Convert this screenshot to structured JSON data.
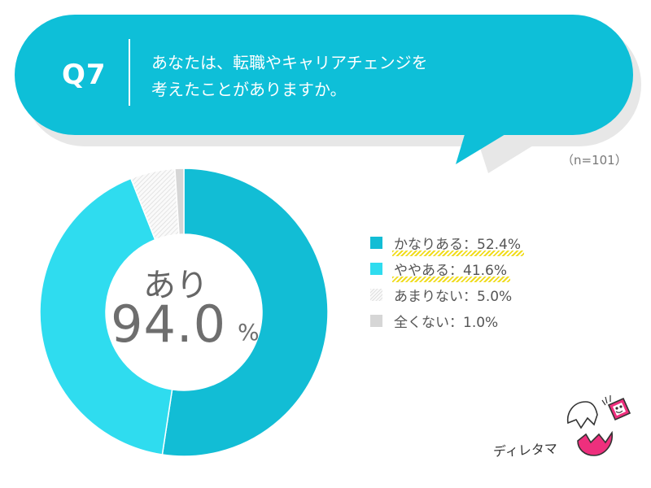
{
  "question": {
    "number": "Q7",
    "line1": "あなたは、転職やキャリアチェンジを",
    "line2": "考えたことがありますか。"
  },
  "sample_size": "（n=101）",
  "center": {
    "label": "あり",
    "value": "94.0",
    "unit": "%"
  },
  "legend": [
    {
      "label": "かなりある：52.4%",
      "color": "#12bdd5",
      "highlight": true
    },
    {
      "label": "ややある：41.6%",
      "color": "#2fdcef",
      "highlight": true
    },
    {
      "label": "あまりない：5.0%",
      "color": "hatch",
      "highlight": false
    },
    {
      "label": "全くない：1.0%",
      "color": "#d6d6d6",
      "highlight": false
    }
  ],
  "brand": "ディレタマ",
  "colors": {
    "accent": "#0ebfd8",
    "very_much": "#12bdd5",
    "somewhat": "#2fdcef",
    "not_really": "#f3f3f3",
    "not_at_all": "#d6d6d6"
  },
  "chart_data": {
    "type": "pie",
    "donut": true,
    "categories": [
      "かなりある",
      "ややある",
      "あまりない",
      "全くない"
    ],
    "values": [
      52.4,
      41.6,
      5.0,
      1.0
    ],
    "unit": "%",
    "n": 101,
    "legend_position": "right",
    "center_text": "あり 94.0%"
  }
}
